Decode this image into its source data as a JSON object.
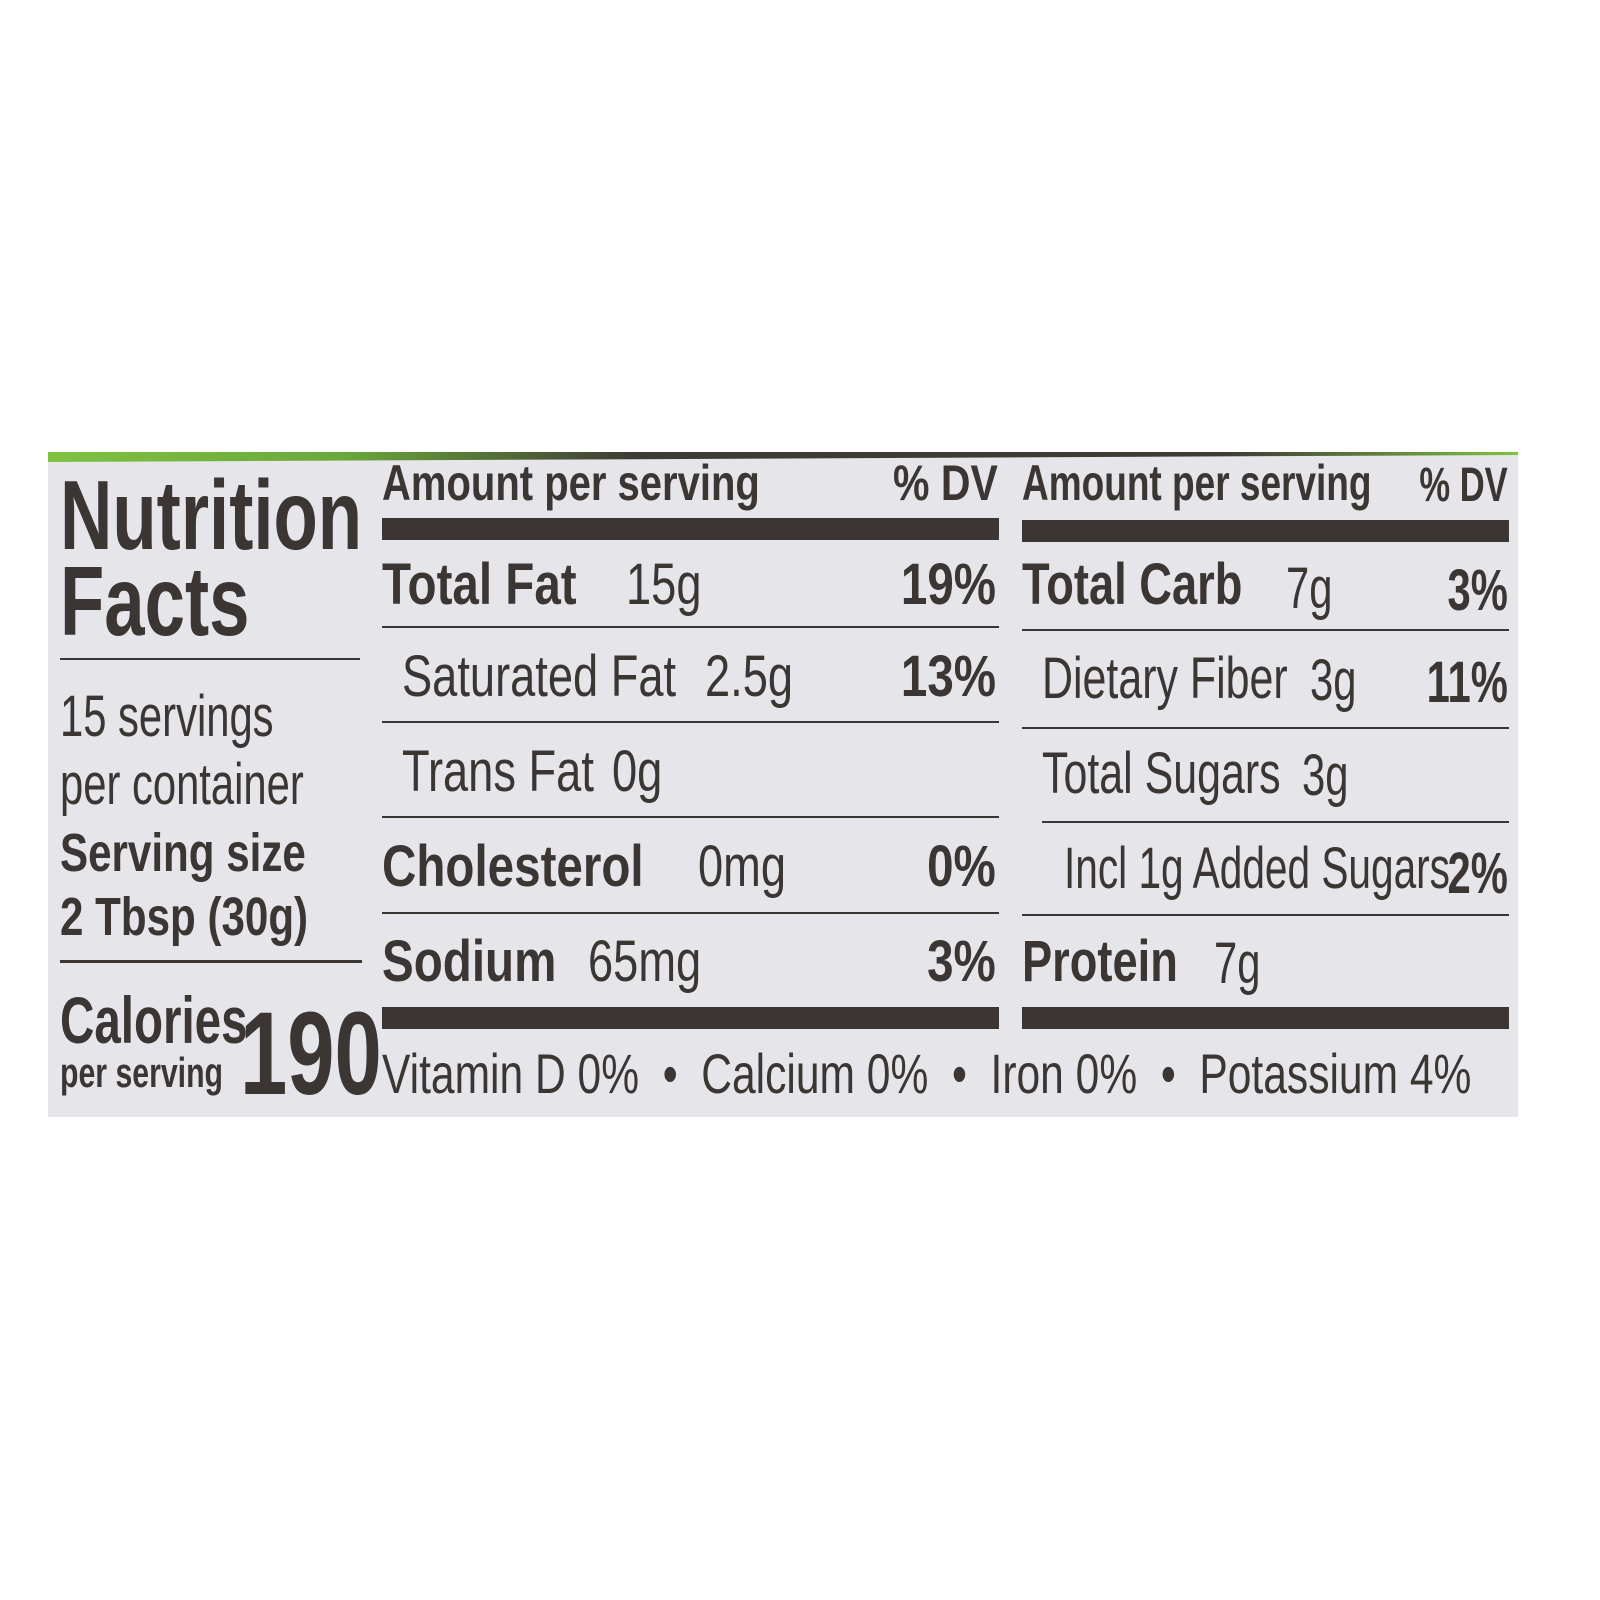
{
  "title_line1": "Nutrition",
  "title_line2": "Facts",
  "servings_line1": "15 servings",
  "servings_line2": "per container",
  "serving_size_label": "Serving size",
  "serving_size_value": "2 Tbsp (30g)",
  "calories_label": "Calories",
  "calories_sub": "per serving",
  "calories_value": "190",
  "header": {
    "amount": "Amount per serving",
    "dv": "% DV"
  },
  "left_rows": [
    {
      "name": "Total Fat",
      "amount": "15g",
      "dv": "19%",
      "bold": true
    },
    {
      "name": "Saturated Fat",
      "amount": "2.5g",
      "dv": "13%",
      "bold": false
    },
    {
      "name": "Trans Fat",
      "amount": "0g",
      "dv": "",
      "bold": false
    },
    {
      "name": "Cholesterol",
      "amount": "0mg",
      "dv": "0%",
      "bold": true
    },
    {
      "name": "Sodium",
      "amount": "65mg",
      "dv": "3%",
      "bold": true
    }
  ],
  "right_rows": [
    {
      "name": "Total Carb",
      "amount": "7g",
      "dv": "3%",
      "bold": true
    },
    {
      "name": "Dietary Fiber",
      "amount": "3g",
      "dv": "11%",
      "bold": false
    },
    {
      "name": "Total Sugars",
      "amount": "3g",
      "dv": "",
      "bold": false
    },
    {
      "name": "Incl 1g Added Sugars",
      "amount": "",
      "dv": "2%",
      "bold": false
    },
    {
      "name": "Protein",
      "amount": "7g",
      "dv": "",
      "bold": true
    }
  ],
  "footer": "Vitamin D 0%  •  Calcium 0%  •  Iron 0%  •  Potassium 4%",
  "colors": {
    "label_bg": "#e5e5ea",
    "ink": "#3b3634",
    "brand_green": "#7fc241"
  }
}
